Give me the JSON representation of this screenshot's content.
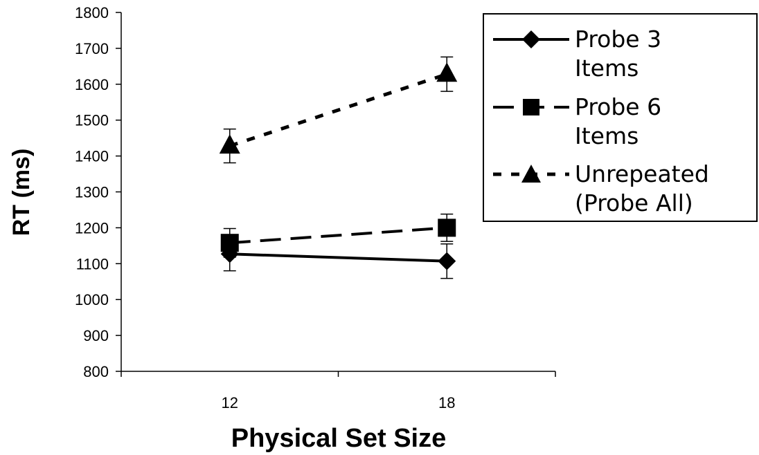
{
  "chart_data": {
    "type": "line",
    "title": "",
    "xlabel": "Physical Set Size",
    "ylabel": "RT (ms)",
    "categories": [
      "12",
      "18"
    ],
    "ylim": [
      800,
      1800
    ],
    "yticks": [
      "800",
      "900",
      "1000",
      "1100",
      "1200",
      "1300",
      "1400",
      "1500",
      "1600",
      "1700",
      "1800"
    ],
    "grid": false,
    "legend_position": "top-right",
    "series": [
      {
        "name_lines": [
          "Probe 3",
          "Items"
        ],
        "values": [
          1127,
          1107
        ],
        "error": [
          47,
          48
        ],
        "marker": "diamond",
        "line_style": "solid"
      },
      {
        "name_lines": [
          "Probe 6",
          "Items"
        ],
        "values": [
          1158,
          1200
        ],
        "error": [
          40,
          38
        ],
        "marker": "square",
        "line_style": "long-dash"
      },
      {
        "name_lines": [
          "Unrepeated",
          "(Probe All)"
        ],
        "values": [
          1428,
          1628
        ],
        "error": [
          47,
          48
        ],
        "marker": "triangle",
        "line_style": "dotted"
      }
    ]
  }
}
